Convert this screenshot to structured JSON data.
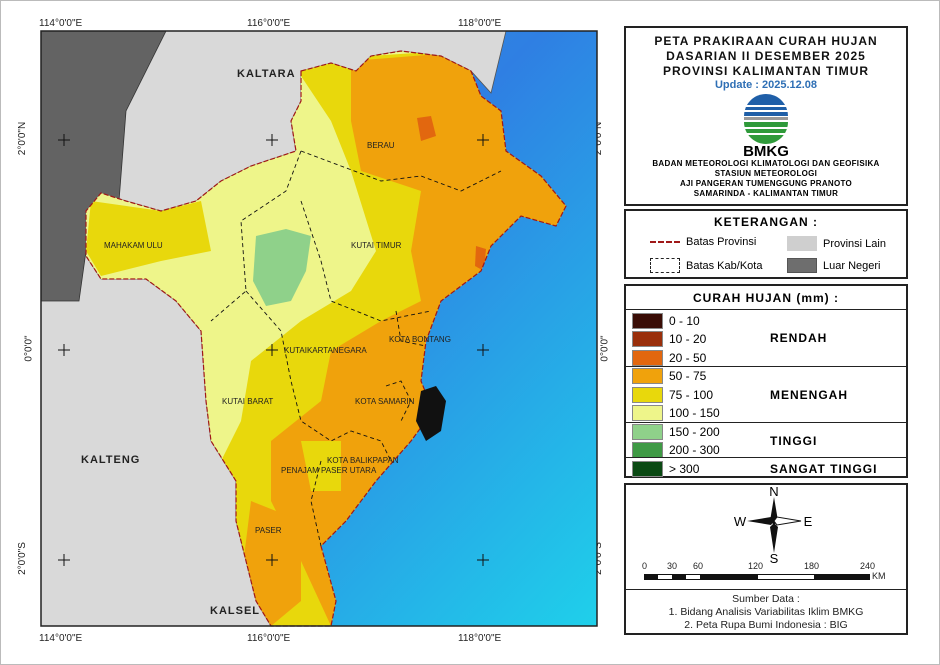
{
  "grid": {
    "top": [
      "114°0'0\"E",
      "116°0'0\"E",
      "118°0'0\"E"
    ],
    "bottom": [
      "114°0'0\"E",
      "116°0'0\"E",
      "118°0'0\"E"
    ],
    "left": [
      "2°0'0\"N",
      "0°0'0\"",
      "2°0'0\"S"
    ],
    "right": [
      "2°0'0\"N",
      "0°0'0\"",
      "2°0'0\"S"
    ]
  },
  "map": {
    "neighbors": {
      "north": "KALTARA",
      "west": "KALTENG",
      "south": "KALSEL"
    },
    "regions": [
      "BERAU",
      "MAHAKAM ULU",
      "KUTAI TIMUR",
      "KUTAIKARTANEGARA",
      "KOTA BONTANG",
      "KUTAI BARAT",
      "KOTA SAMARIN",
      "KOTA BALIKPAPAN",
      "PENAJAM PASER UTARA",
      "PASER"
    ],
    "colors": {
      "sea_near": "#2f7fe3",
      "sea_far": "#1fd0ea",
      "other_province": "#d9d9d9",
      "foreign": "#636363"
    }
  },
  "title": {
    "lines": [
      "PETA PRAKIRAAN CURAH HUJAN",
      "DASARIAN II DESEMBER 2025",
      "PROVINSI KALIMANTAN TIMUR"
    ],
    "update": "Update : 2025.12.08",
    "logo_text": "BMKG",
    "org": [
      "BADAN METEOROLOGI KLIMATOLOGI DAN GEOFISIKA",
      "STASIUN METEOROLOGI",
      "AJI PANGERAN TUMENGGUNG PRANOTO",
      "SAMARINDA - KALIMANTAN TIMUR"
    ]
  },
  "keterangan": {
    "header": "KETERANGAN :",
    "items": [
      {
        "label": "Batas Provinsi",
        "symbol": "red-dash-line"
      },
      {
        "label": "Batas Kab/Kota",
        "symbol": "black-dash-box"
      },
      {
        "label": "Provinsi Lain",
        "color": "#cfcfcf"
      },
      {
        "label": "Luar Negeri",
        "color": "#6e6e6e"
      }
    ]
  },
  "legend": {
    "header": "CURAH HUJAN (mm) :",
    "items": [
      {
        "label": "0 - 10",
        "color": "#3a0d06"
      },
      {
        "label": "10 - 20",
        "color": "#9a2f0b"
      },
      {
        "label": "20 - 50",
        "color": "#e2670f"
      },
      {
        "label": "50 - 75",
        "color": "#f0a20c"
      },
      {
        "label": "75 - 100",
        "color": "#e8d80c"
      },
      {
        "label": "100 - 150",
        "color": "#eef58a"
      },
      {
        "label": "150 - 200",
        "color": "#8fd18a"
      },
      {
        "label": "200 - 300",
        "color": "#3f9a45"
      },
      {
        "label": "> 300",
        "color": "#0b4a14"
      }
    ],
    "categories": [
      "RENDAH",
      "MENENGAH",
      "TINGGI",
      "SANGAT TINGGI"
    ]
  },
  "compass": {
    "n": "N",
    "s": "S",
    "e": "E",
    "w": "W"
  },
  "scale": {
    "ticks": [
      "0",
      "30",
      "60",
      "120",
      "180",
      "240"
    ],
    "unit": "KM"
  },
  "sources": {
    "header": "Sumber Data :",
    "lines": [
      "1. Bidang Analisis Variabilitas Iklim BMKG",
      "2. Peta Rupa Bumi Indonesia : BIG"
    ]
  }
}
